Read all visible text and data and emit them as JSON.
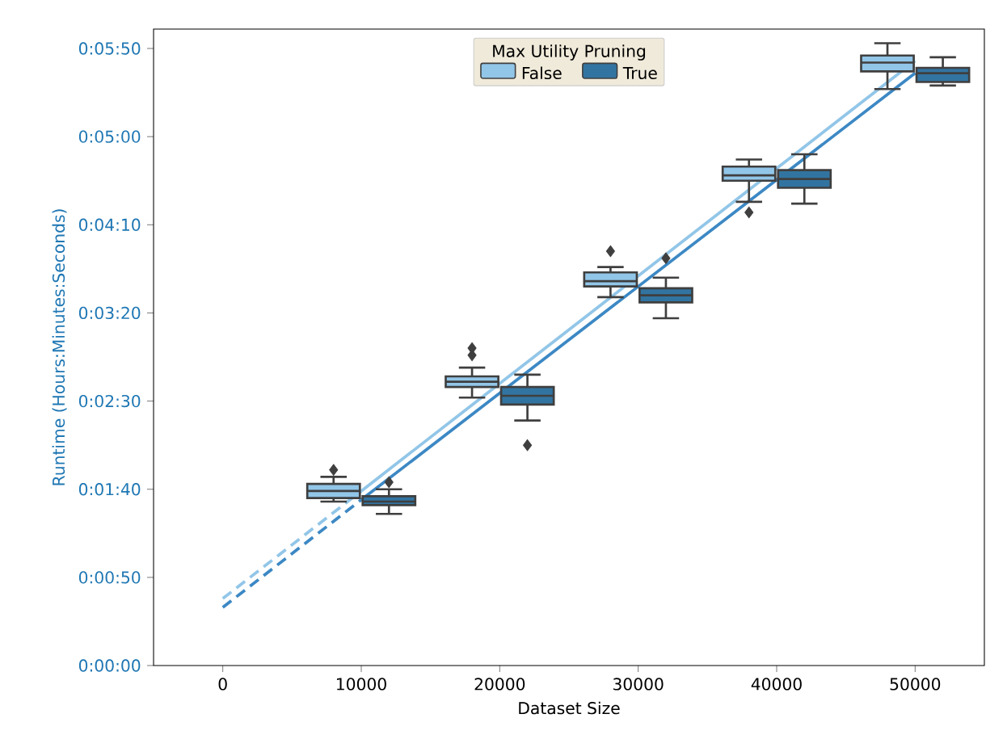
{
  "chart_data": {
    "type": "box",
    "xlabel": "Dataset Size",
    "ylabel": "Runtime (Hours:Minutes:Seconds)",
    "legend_title": "Max Utility Pruning",
    "legend": "top",
    "grid": false,
    "xlim": [
      -5000,
      55000
    ],
    "xticks": [
      0,
      10000,
      20000,
      30000,
      40000,
      50000
    ],
    "ylim": [
      0,
      361
    ],
    "yticks": [
      {
        "value": 0,
        "label": "0:00:00"
      },
      {
        "value": 50,
        "label": "0:00:50"
      },
      {
        "value": 100,
        "label": "0:01:40"
      },
      {
        "value": 150,
        "label": "0:02:30"
      },
      {
        "value": 200,
        "label": "0:03:20"
      },
      {
        "value": 250,
        "label": "0:04:10"
      },
      {
        "value": 300,
        "label": "0:05:00"
      },
      {
        "value": 350,
        "label": "0:05:50"
      }
    ],
    "series": [
      {
        "name": "False",
        "color": "#92c6e8",
        "x": [
          8000,
          18000,
          28000,
          38000,
          48000
        ],
        "boxes": [
          {
            "low": 93,
            "q1": 95,
            "median": 99,
            "q3": 103,
            "high": 107,
            "outliers": [
              111
            ]
          },
          {
            "low": 152,
            "q1": 158,
            "median": 161,
            "q3": 164,
            "high": 169,
            "outliers": [
              176,
              180
            ]
          },
          {
            "low": 209,
            "q1": 215,
            "median": 218,
            "q3": 223,
            "high": 226,
            "outliers": [
              235
            ]
          },
          {
            "low": 263,
            "q1": 275,
            "median": 278,
            "q3": 283,
            "high": 287,
            "outliers": [
              257
            ]
          },
          {
            "low": 327,
            "q1": 337,
            "median": 342,
            "q3": 346,
            "high": 353
          }
        ]
      },
      {
        "name": "True",
        "color": "#3274a1",
        "x": [
          12000,
          22000,
          32000,
          42000,
          52000
        ],
        "boxes": [
          {
            "low": 86,
            "q1": 91,
            "median": 93,
            "q3": 96,
            "high": 100,
            "outliers": [
              104
            ]
          },
          {
            "low": 139,
            "q1": 148,
            "median": 153,
            "q3": 158,
            "high": 165,
            "outliers": [
              125
            ]
          },
          {
            "low": 197,
            "q1": 206,
            "median": 210,
            "q3": 214,
            "high": 220,
            "outliers": [
              231
            ]
          },
          {
            "low": 262,
            "q1": 271,
            "median": 276,
            "q3": 281,
            "high": 290
          },
          {
            "low": 329,
            "q1": 331,
            "median": 336,
            "q3": 339,
            "high": 345
          }
        ]
      },
      {
        "type": "line",
        "color": "#92c6e8",
        "line_style": "dashed",
        "x": [
          0,
          10000
        ],
        "values": [
          38,
          99
        ]
      },
      {
        "type": "line",
        "color": "#92c6e8",
        "line_style": "solid",
        "x": [
          10000,
          50000
        ],
        "values": [
          99,
          343
        ]
      },
      {
        "type": "line",
        "color": "#3c88c4",
        "line_style": "dashed",
        "x": [
          0,
          10000
        ],
        "values": [
          33,
          94
        ]
      },
      {
        "type": "line",
        "color": "#3c88c4",
        "line_style": "solid",
        "x": [
          10000,
          50000
        ],
        "values": [
          94,
          336
        ]
      }
    ]
  }
}
